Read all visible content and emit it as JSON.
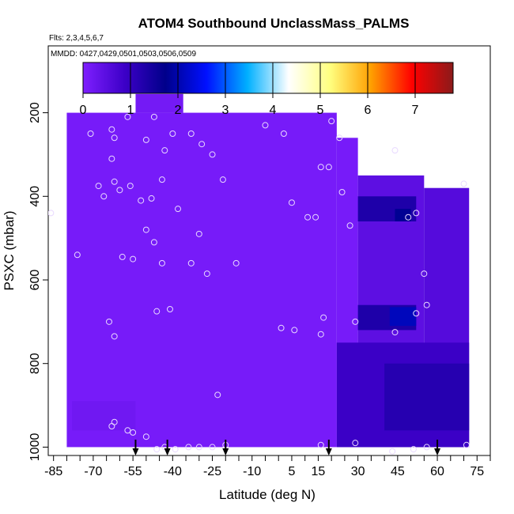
{
  "chart_data": {
    "type": "heatmap",
    "title": "ATOM4 Southbound UnclassMass_PALMS",
    "subtitle_flights": "Flts: 2,3,4,5,6,7",
    "subtitle_dates": "MMDD: 0427,0429,0501,0503,0506,0509",
    "xlabel": "Latitude (deg N)",
    "ylabel": "PSXC (mbar)",
    "xlim": [
      -87,
      80
    ],
    "ylim": [
      1020,
      40
    ],
    "y_reversed": true,
    "x_ticks": [
      -85,
      -70,
      -55,
      -40,
      -25,
      -10,
      5,
      15,
      30,
      45,
      60,
      75
    ],
    "y_ticks": [
      200,
      400,
      600,
      800,
      1000
    ],
    "colorbar": {
      "range": [
        0,
        7.8
      ],
      "ticks": [
        0,
        1,
        2,
        3,
        4,
        5,
        6,
        7
      ],
      "colors": [
        "#7f1fff",
        "#3d00c8",
        "#00008a",
        "#0010ff",
        "#00b0ff",
        "#ffffff",
        "#ffff80",
        "#ffa000",
        "#ff0000",
        "#8b1a1a"
      ]
    },
    "regions": [
      {
        "x0": -54,
        "x1": -36,
        "p0": 155,
        "p1": 200,
        "v": 0.15
      },
      {
        "x0": -80,
        "x1": 22,
        "p0": 200,
        "p1": 1000,
        "v": 0.1
      },
      {
        "x0": -78,
        "x1": -54,
        "p0": 890,
        "p1": 960,
        "v": 0.2
      },
      {
        "x0": 22,
        "x1": 30,
        "p0": 260,
        "p1": 1000,
        "v": 0.1
      },
      {
        "x0": 30,
        "x1": 55,
        "p0": 350,
        "p1": 1000,
        "v": 0.45
      },
      {
        "x0": 55,
        "x1": 72,
        "p0": 380,
        "p1": 1000,
        "v": 0.55
      },
      {
        "x0": 30,
        "x1": 52,
        "p0": 400,
        "p1": 460,
        "v": 1.3
      },
      {
        "x0": 44,
        "x1": 50,
        "p0": 430,
        "p1": 460,
        "v": 1.8
      },
      {
        "x0": 30,
        "x1": 52,
        "p0": 660,
        "p1": 720,
        "v": 1.3
      },
      {
        "x0": 42,
        "x1": 52,
        "p0": 665,
        "p1": 710,
        "v": 2.1
      },
      {
        "x0": 22,
        "x1": 72,
        "p0": 750,
        "p1": 1000,
        "v": 0.9
      },
      {
        "x0": 40,
        "x1": 72,
        "p0": 800,
        "p1": 960,
        "v": 1.2
      }
    ],
    "observations": [
      {
        "x": -71,
        "p": 250
      },
      {
        "x": -63,
        "p": 240
      },
      {
        "x": -62,
        "p": 260
      },
      {
        "x": -57,
        "p": 210
      },
      {
        "x": -50,
        "p": 265
      },
      {
        "x": -47,
        "p": 210
      },
      {
        "x": -43,
        "p": 290
      },
      {
        "x": -40,
        "p": 250
      },
      {
        "x": -33,
        "p": 250
      },
      {
        "x": -29,
        "p": 275
      },
      {
        "x": -25,
        "p": 300
      },
      {
        "x": -5,
        "p": 230
      },
      {
        "x": 2,
        "p": 250
      },
      {
        "x": 20,
        "p": 220
      },
      {
        "x": 23,
        "p": 260
      },
      {
        "x": -63,
        "p": 310
      },
      {
        "x": -68,
        "p": 375
      },
      {
        "x": -66,
        "p": 400
      },
      {
        "x": -62,
        "p": 365
      },
      {
        "x": -60,
        "p": 385
      },
      {
        "x": -56,
        "p": 375
      },
      {
        "x": -52,
        "p": 410
      },
      {
        "x": -48,
        "p": 405
      },
      {
        "x": -44,
        "p": 360
      },
      {
        "x": -38,
        "p": 430
      },
      {
        "x": -21,
        "p": 360
      },
      {
        "x": 16,
        "p": 330
      },
      {
        "x": 19,
        "p": 330
      },
      {
        "x": 24,
        "p": 390
      },
      {
        "x": 27,
        "p": 470
      },
      {
        "x": 44,
        "p": 290
      },
      {
        "x": 49,
        "p": 450
      },
      {
        "x": 52,
        "p": 440
      },
      {
        "x": 70,
        "p": 370
      },
      {
        "x": 5,
        "p": 415
      },
      {
        "x": 11,
        "p": 450
      },
      {
        "x": 14,
        "p": 450
      },
      {
        "x": -50,
        "p": 480
      },
      {
        "x": -47,
        "p": 510
      },
      {
        "x": -44,
        "p": 560
      },
      {
        "x": -33,
        "p": 560
      },
      {
        "x": -30,
        "p": 490
      },
      {
        "x": -27,
        "p": 585
      },
      {
        "x": -16,
        "p": 560
      },
      {
        "x": -76,
        "p": 540
      },
      {
        "x": -59,
        "p": 545
      },
      {
        "x": -55,
        "p": 550
      },
      {
        "x": -86,
        "p": 440
      },
      {
        "x": 55,
        "p": 585
      },
      {
        "x": -64,
        "p": 700
      },
      {
        "x": -62,
        "p": 735
      },
      {
        "x": -46,
        "p": 675
      },
      {
        "x": -41,
        "p": 670
      },
      {
        "x": 1,
        "p": 715
      },
      {
        "x": 6,
        "p": 720
      },
      {
        "x": 16,
        "p": 730
      },
      {
        "x": 17,
        "p": 690
      },
      {
        "x": 29,
        "p": 700
      },
      {
        "x": 44,
        "p": 725
      },
      {
        "x": 52,
        "p": 680
      },
      {
        "x": 56,
        "p": 660
      },
      {
        "x": -23,
        "p": 875
      },
      {
        "x": -63,
        "p": 950
      },
      {
        "x": -62,
        "p": 940
      },
      {
        "x": -57,
        "p": 960
      },
      {
        "x": -55,
        "p": 965
      },
      {
        "x": -50,
        "p": 975
      },
      {
        "x": -46,
        "p": 1005
      },
      {
        "x": -43,
        "p": 1000
      },
      {
        "x": -39,
        "p": 1005
      },
      {
        "x": -34,
        "p": 1000
      },
      {
        "x": -30,
        "p": 1000
      },
      {
        "x": -25,
        "p": 1000
      },
      {
        "x": -20,
        "p": 995
      },
      {
        "x": 16,
        "p": 995
      },
      {
        "x": 29,
        "p": 990
      },
      {
        "x": 43,
        "p": 1010
      },
      {
        "x": 51,
        "p": 1005
      },
      {
        "x": 56,
        "p": 1000
      },
      {
        "x": 71,
        "p": 995
      }
    ],
    "arrows_latitude": [
      -54,
      -42,
      -20,
      19,
      60
    ]
  }
}
